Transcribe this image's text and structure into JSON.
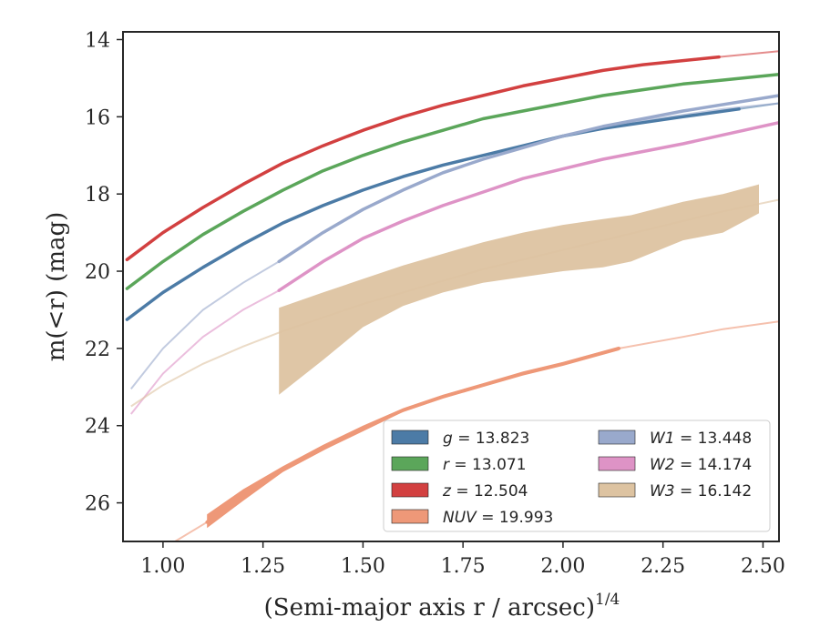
{
  "chart_data": {
    "type": "line",
    "xlabel": "(Semi-major axis r / arcsec)",
    "xlabel_exp": "1/4",
    "ylabel": "m(<r) (mag)",
    "xlim": [
      0.9,
      2.54
    ],
    "ylim": [
      27,
      13.8
    ],
    "y_inverted": true,
    "grid": false,
    "legend_position": "lower-right",
    "xticks": [
      1.0,
      1.25,
      1.5,
      1.75,
      2.0,
      2.25,
      2.5
    ],
    "xtick_labels": [
      "1.00",
      "1.25",
      "1.50",
      "1.75",
      "2.00",
      "2.25",
      "2.50"
    ],
    "yticks": [
      14,
      16,
      18,
      20,
      22,
      24,
      26
    ],
    "ytick_labels": [
      "14",
      "16",
      "18",
      "20",
      "22",
      "24",
      "26"
    ],
    "series": [
      {
        "key": "g",
        "label_var": "g",
        "label_value": " = 13.823",
        "color": "#4C7BA6",
        "band_width": 0.08,
        "data_x": [
          0.91,
          1.0,
          1.1,
          1.2,
          1.3,
          1.4,
          1.5,
          1.6,
          1.7,
          1.8,
          1.9,
          2.0,
          2.1,
          2.2,
          2.3,
          2.44
        ],
        "data_y": [
          21.25,
          20.55,
          19.9,
          19.3,
          18.75,
          18.3,
          17.9,
          17.55,
          17.25,
          17.0,
          16.75,
          16.5,
          16.3,
          16.15,
          16.0,
          15.8
        ],
        "model_x": [
          2.44,
          2.54
        ],
        "model_y": [
          15.8,
          15.65
        ]
      },
      {
        "key": "r",
        "label_var": "r",
        "label_value": " = 13.071",
        "color": "#5BA65A",
        "band_width": 0.08,
        "data_x": [
          0.91,
          1.0,
          1.1,
          1.2,
          1.3,
          1.4,
          1.5,
          1.6,
          1.7,
          1.8,
          1.9,
          2.0,
          2.1,
          2.2,
          2.3,
          2.4,
          2.54
        ],
        "data_y": [
          20.45,
          19.75,
          19.05,
          18.45,
          17.9,
          17.4,
          17.0,
          16.65,
          16.35,
          16.05,
          15.85,
          15.65,
          15.45,
          15.3,
          15.15,
          15.05,
          14.9
        ],
        "model_x": [],
        "model_y": []
      },
      {
        "key": "z",
        "label_var": "z",
        "label_value": " = 12.504",
        "color": "#D24040",
        "band_width": 0.08,
        "data_x": [
          0.91,
          1.0,
          1.1,
          1.2,
          1.3,
          1.4,
          1.5,
          1.6,
          1.7,
          1.8,
          1.9,
          2.0,
          2.1,
          2.2,
          2.39
        ],
        "data_y": [
          19.7,
          19.0,
          18.35,
          17.75,
          17.2,
          16.75,
          16.35,
          16.0,
          15.7,
          15.45,
          15.2,
          15.0,
          14.8,
          14.65,
          14.45
        ],
        "model_x": [
          2.39,
          2.54
        ],
        "model_y": [
          14.45,
          14.3
        ]
      },
      {
        "key": "W1",
        "label_var": "W1",
        "label_value": " = 13.448",
        "color": "#99A9CC",
        "band_width": 0.07,
        "data_x": [
          1.29,
          1.4,
          1.5,
          1.6,
          1.7,
          1.8,
          1.9,
          2.0,
          2.1,
          2.2,
          2.3,
          2.54
        ],
        "data_y": [
          19.75,
          19.0,
          18.4,
          17.9,
          17.45,
          17.1,
          16.8,
          16.5,
          16.25,
          16.05,
          15.85,
          15.45
        ],
        "model_x": [
          0.92,
          1.0,
          1.1,
          1.2,
          1.29
        ],
        "model_y": [
          23.05,
          22.0,
          21.0,
          20.3,
          19.75
        ],
        "model2_x": [
          2.1,
          2.2,
          2.3,
          2.4,
          2.54
        ],
        "model2_y": [
          16.3,
          16.1,
          15.95,
          15.8,
          15.65
        ]
      },
      {
        "key": "W2",
        "label_var": "W2",
        "label_value": " = 14.174",
        "color": "#DE93C6",
        "band_width": 0.1,
        "data_x": [
          1.29,
          1.4,
          1.5,
          1.6,
          1.7,
          1.8,
          1.9,
          2.0,
          2.1,
          2.2,
          2.3,
          2.54
        ],
        "data_y": [
          20.5,
          19.75,
          19.15,
          18.7,
          18.3,
          17.95,
          17.6,
          17.35,
          17.1,
          16.9,
          16.7,
          16.15
        ],
        "model_x": [
          0.92,
          1.0,
          1.1,
          1.2,
          1.29
        ],
        "model_y": [
          23.7,
          22.65,
          21.7,
          21.0,
          20.5
        ],
        "model2_x": [],
        "model2_y": []
      },
      {
        "key": "NUV",
        "label_var": "NUV",
        "label_value": " = 19.993",
        "color": "#EE9878",
        "band_width": 0.12,
        "data_x": [
          1.11,
          1.2,
          1.3,
          1.4,
          1.5,
          1.6,
          1.7,
          1.8,
          1.9,
          2.0,
          2.14
        ],
        "data_y": [
          26.5,
          25.75,
          25.15,
          24.6,
          24.1,
          23.6,
          23.25,
          22.95,
          22.65,
          22.4,
          22.0
        ],
        "data_lower": [
          26.65,
          25.95,
          25.2,
          24.65,
          24.1,
          23.65,
          23.3,
          23.0,
          22.7,
          22.45,
          22.05
        ],
        "data_upper": [
          26.3,
          25.65,
          25.05,
          24.5,
          24.0,
          23.55,
          23.2,
          22.9,
          22.6,
          22.35,
          21.95
        ],
        "model_x": [
          1.03,
          1.11
        ],
        "model_y": [
          27.0,
          26.5
        ],
        "model2_x": [
          2.14,
          2.3,
          2.4,
          2.54
        ],
        "model2_y": [
          22.0,
          21.7,
          21.5,
          21.3
        ]
      },
      {
        "key": "W3",
        "label_var": "W3",
        "label_value": " = 16.142",
        "color": "#DDC3A1",
        "band_width": 0,
        "band_x": [
          1.29,
          1.4,
          1.5,
          1.6,
          1.7,
          1.8,
          1.9,
          2.0,
          2.1,
          2.17,
          2.3,
          2.4,
          2.49
        ],
        "band_upper": [
          20.95,
          20.55,
          20.2,
          19.85,
          19.55,
          19.25,
          19.0,
          18.8,
          18.65,
          18.55,
          18.2,
          18.0,
          17.75
        ],
        "band_lower": [
          23.2,
          22.3,
          21.45,
          20.9,
          20.55,
          20.3,
          20.15,
          20.0,
          19.9,
          19.75,
          19.2,
          19.0,
          18.5
        ],
        "model_x": [
          0.92,
          1.0,
          1.1,
          1.2,
          1.3,
          1.4,
          1.5,
          1.6,
          1.7,
          1.8,
          1.9,
          2.0,
          2.1,
          2.2,
          2.3,
          2.4,
          2.54
        ],
        "model_y": [
          23.5,
          22.95,
          22.4,
          21.95,
          21.55,
          21.2,
          20.85,
          20.55,
          20.25,
          19.95,
          19.7,
          19.45,
          19.2,
          18.95,
          18.7,
          18.45,
          18.15
        ]
      }
    ],
    "legend_col1": [
      "g",
      "r",
      "z",
      "NUV"
    ],
    "legend_col2": [
      "W1",
      "W2",
      "W3"
    ]
  }
}
